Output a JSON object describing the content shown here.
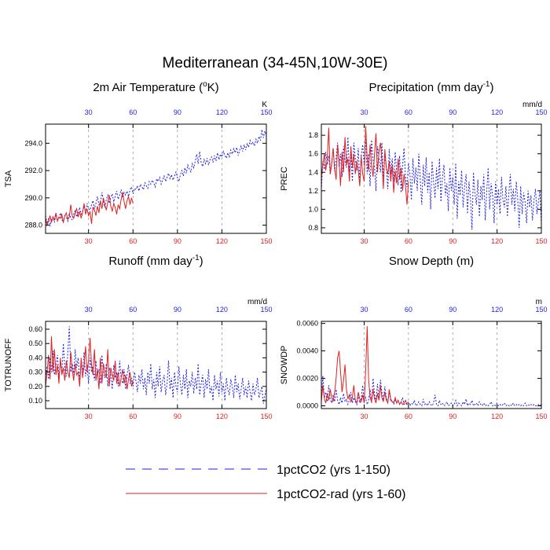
{
  "figure": {
    "title": "Mediterranean (34-45N,10W-30E)"
  },
  "legend": {
    "entries": [
      {
        "label": "1pctCO2 (yrs 1-150)",
        "color": "#1f1fe0",
        "dash": "dashed"
      },
      {
        "label": "1pctCO2-rad (yrs 1-60)",
        "color": "#e02020",
        "dash": "solid"
      }
    ]
  },
  "colors": {
    "blue": "#1f1fe0",
    "red": "#e02020",
    "grid": "#9a9a9a"
  },
  "chart_data": [
    {
      "type": "line",
      "title_main": "2m Air Temperature (",
      "title_sup": "o",
      "title_end": "K)",
      "ylabel": "TSA",
      "unit": "K",
      "xlim": [
        1,
        150
      ],
      "ylim": [
        287.4,
        295.4
      ],
      "y_ticks": [
        "288.0",
        "290.0",
        "292.0",
        "294.0"
      ],
      "y_tick_values": [
        288,
        290,
        292,
        294
      ],
      "x_ticks": [
        "30",
        "60",
        "90",
        "120",
        "150"
      ],
      "x_tick_values": [
        30,
        60,
        90,
        120,
        150
      ],
      "series": [
        {
          "name": "1pctCO2 (yrs 1-150)",
          "color": "blue",
          "x_start": 1,
          "values": [
            288.7,
            288.1,
            288.5,
            287.9,
            288.4,
            288.6,
            288.2,
            288.8,
            288.3,
            288.5,
            288.9,
            288.4,
            288.2,
            288.7,
            288.6,
            288.3,
            288.9,
            288.5,
            288.4,
            288.8,
            289.1,
            288.6,
            288.9,
            289.3,
            288.8,
            289.0,
            289.4,
            288.9,
            289.6,
            289.2,
            289.1,
            289.5,
            289.8,
            289.2,
            289.6,
            290.1,
            289.5,
            289.7,
            290.4,
            289.8,
            289.3,
            289.9,
            290.2,
            289.6,
            290.0,
            290.3,
            289.7,
            290.1,
            290.5,
            289.9,
            290.2,
            290.6,
            290.0,
            290.4,
            290.2,
            290.5,
            290.1,
            290.6,
            290.8,
            290.3,
            290.7,
            290.6,
            290.9,
            290.5,
            291.0,
            290.8,
            290.6,
            291.1,
            290.9,
            290.7,
            291.2,
            291.0,
            291.3,
            291.1,
            290.8,
            291.4,
            291.2,
            291.5,
            291.0,
            291.3,
            291.6,
            291.2,
            291.5,
            291.8,
            291.4,
            291.7,
            291.3,
            291.6,
            291.9,
            291.5,
            291.2,
            291.7,
            292.0,
            291.6,
            292.2,
            291.8,
            292.4,
            292.1,
            291.9,
            292.5,
            292.2,
            292.7,
            293.2,
            292.5,
            293.4,
            292.6,
            292.3,
            292.8,
            292.5,
            292.9,
            292.4,
            292.8,
            293.0,
            292.6,
            293.1,
            292.7,
            293.3,
            292.8,
            293.2,
            293.0,
            293.4,
            293.1,
            292.9,
            293.3,
            293.0,
            293.5,
            293.2,
            293.6,
            293.3,
            293.7,
            293.1,
            293.5,
            293.8,
            293.4,
            293.9,
            293.5,
            294.0,
            293.7,
            294.2,
            293.9,
            294.1,
            293.8,
            294.3,
            294.0,
            294.5,
            294.2,
            295.0,
            294.4,
            294.9,
            294.5
          ]
        },
        {
          "name": "1pctCO2-rad (yrs 1-60)",
          "color": "red",
          "x_start": 1,
          "values": [
            288.5,
            288.0,
            288.3,
            288.7,
            288.2,
            288.6,
            288.4,
            288.9,
            288.3,
            288.6,
            288.5,
            288.8,
            288.2,
            288.7,
            288.9,
            288.4,
            288.6,
            289.5,
            288.7,
            288.5,
            288.9,
            289.2,
            288.6,
            289.0,
            288.5,
            288.9,
            289.6,
            288.8,
            289.2,
            288.7,
            289.0,
            288.1,
            289.3,
            289.1,
            288.7,
            289.4,
            288.9,
            289.8,
            289.2,
            290.0,
            289.5,
            289.1,
            289.7,
            290.2,
            289.4,
            289.0,
            289.6,
            289.3,
            288.8,
            289.5,
            289.2,
            289.9,
            290.4,
            289.7,
            289.2,
            289.8,
            290.1,
            289.5,
            290.0,
            289.6
          ]
        }
      ]
    },
    {
      "type": "line",
      "title_main": "Precipitation (mm day",
      "title_sup": "-1",
      "title_end": ")",
      "ylabel": "PREC",
      "unit": "mm/d",
      "xlim": [
        1,
        150
      ],
      "ylim": [
        0.74,
        1.92
      ],
      "y_ticks": [
        "0.8",
        "1.0",
        "1.2",
        "1.4",
        "1.6",
        "1.8"
      ],
      "y_tick_values": [
        0.8,
        1.0,
        1.2,
        1.4,
        1.6,
        1.8
      ],
      "x_ticks": [
        "30",
        "60",
        "90",
        "120",
        "150"
      ],
      "x_tick_values": [
        30,
        60,
        90,
        120,
        150
      ],
      "series": [
        {
          "name": "1pctCO2 (yrs 1-150)",
          "color": "blue",
          "x_start": 1,
          "values": [
            1.21,
            1.52,
            1.43,
            1.62,
            1.48,
            1.58,
            1.38,
            1.5,
            1.66,
            1.41,
            1.55,
            1.72,
            1.46,
            1.6,
            1.35,
            1.68,
            1.52,
            1.45,
            1.78,
            1.4,
            1.6,
            1.3,
            1.72,
            1.55,
            1.42,
            1.66,
            1.28,
            1.58,
            1.7,
            1.48,
            1.82,
            1.38,
            1.6,
            1.25,
            1.75,
            1.52,
            1.46,
            1.2,
            1.68,
            1.56,
            1.4,
            1.72,
            1.33,
            1.58,
            1.46,
            1.22,
            1.65,
            1.38,
            1.55,
            1.3,
            1.62,
            1.42,
            1.26,
            1.58,
            1.18,
            1.48,
            1.66,
            1.35,
            1.24,
            1.5,
            1.38,
            1.1,
            1.55,
            1.28,
            1.45,
            1.2,
            1.6,
            1.32,
            1.05,
            1.48,
            1.25,
            1.56,
            1.18,
            1.4,
            1.0,
            1.52,
            1.3,
            1.12,
            1.45,
            1.22,
            1.55,
            1.08,
            1.35,
            1.48,
            1.15,
            1.28,
            0.98,
            1.45,
            1.2,
            1.35,
            1.05,
            1.5,
            0.9,
            1.3,
            1.15,
            1.42,
            1.02,
            1.25,
            1.38,
            0.95,
            1.3,
            1.12,
            0.78,
            1.4,
            1.18,
            1.05,
            1.32,
            0.92,
            1.25,
            1.1,
            1.38,
            0.88,
            1.2,
            1.45,
            1.0,
            1.28,
            1.15,
            0.85,
            1.3,
            1.05,
            1.22,
            0.95,
            1.35,
            1.1,
            1.02,
            1.25,
            0.92,
            1.18,
            1.38,
            1.05,
            1.22,
            0.98,
            1.3,
            1.12,
            0.8,
            1.25,
            0.95,
            1.18,
            1.08,
            0.85,
            1.2,
            1.02,
            1.15,
            0.88,
            1.1,
            1.22,
            0.95,
            1.08,
            1.2,
            0.84
          ]
        },
        {
          "name": "1pctCO2-rad (yrs 1-60)",
          "color": "red",
          "x_start": 1,
          "values": [
            1.35,
            1.48,
            1.6,
            1.42,
            1.55,
            1.88,
            1.38,
            1.5,
            1.66,
            1.45,
            1.32,
            1.7,
            1.52,
            1.25,
            1.62,
            1.4,
            1.78,
            1.48,
            1.55,
            1.3,
            1.68,
            1.45,
            1.6,
            1.38,
            1.52,
            1.42,
            1.25,
            1.58,
            1.38,
            1.3,
            1.9,
            1.55,
            1.42,
            1.7,
            1.48,
            1.35,
            1.6,
            1.82,
            1.4,
            1.62,
            1.72,
            1.55,
            1.22,
            1.65,
            1.45,
            1.38,
            1.52,
            1.3,
            1.48,
            1.18,
            1.42,
            1.28,
            1.55,
            1.32,
            1.45,
            1.2,
            1.38,
            1.25,
            1.05,
            1.3
          ]
        }
      ]
    },
    {
      "type": "line",
      "title_main": "Runoff (mm day",
      "title_sup": "-1",
      "title_end": ")",
      "ylabel": "TOTRUNOFF",
      "unit": "mm/d",
      "xlim": [
        1,
        150
      ],
      "ylim": [
        0.045,
        0.655
      ],
      "y_ticks": [
        "0.10",
        "0.20",
        "0.30",
        "0.40",
        "0.50",
        "0.60"
      ],
      "y_tick_values": [
        0.1,
        0.2,
        0.3,
        0.4,
        0.5,
        0.6
      ],
      "x_ticks": [
        "30",
        "60",
        "90",
        "120",
        "150"
      ],
      "x_tick_values": [
        30,
        60,
        90,
        120,
        150
      ],
      "series": [
        {
          "name": "1pctCO2 (yrs 1-150)",
          "color": "blue",
          "x_start": 1,
          "values": [
            0.26,
            0.34,
            0.25,
            0.4,
            0.3,
            0.45,
            0.28,
            0.35,
            0.42,
            0.26,
            0.38,
            0.3,
            0.5,
            0.32,
            0.27,
            0.44,
            0.62,
            0.3,
            0.36,
            0.28,
            0.46,
            0.33,
            0.4,
            0.25,
            0.36,
            0.3,
            0.44,
            0.27,
            0.35,
            0.22,
            0.4,
            0.3,
            0.34,
            0.24,
            0.38,
            0.28,
            0.32,
            0.22,
            0.42,
            0.3,
            0.26,
            0.36,
            0.2,
            0.33,
            0.28,
            0.18,
            0.35,
            0.26,
            0.3,
            0.2,
            0.38,
            0.25,
            0.22,
            0.32,
            0.18,
            0.28,
            0.35,
            0.22,
            0.26,
            0.2,
            0.3,
            0.24,
            0.16,
            0.28,
            0.22,
            0.32,
            0.18,
            0.26,
            0.14,
            0.3,
            0.22,
            0.36,
            0.18,
            0.25,
            0.12,
            0.3,
            0.2,
            0.34,
            0.16,
            0.24,
            0.28,
            0.14,
            0.22,
            0.38,
            0.18,
            0.26,
            0.12,
            0.3,
            0.2,
            0.16,
            0.34,
            0.22,
            0.14,
            0.28,
            0.18,
            0.32,
            0.12,
            0.24,
            0.2,
            0.3,
            0.15,
            0.26,
            0.18,
            0.36,
            0.14,
            0.22,
            0.28,
            0.12,
            0.25,
            0.18,
            0.32,
            0.15,
            0.2,
            0.1,
            0.28,
            0.18,
            0.24,
            0.13,
            0.3,
            0.16,
            0.22,
            0.1,
            0.26,
            0.18,
            0.14,
            0.25,
            0.2,
            0.12,
            0.28,
            0.16,
            0.22,
            0.11,
            0.18,
            0.26,
            0.14,
            0.2,
            0.12,
            0.24,
            0.16,
            0.1,
            0.22,
            0.14,
            0.18,
            0.26,
            0.12,
            0.16,
            0.2,
            0.08,
            0.14,
            0.18
          ]
        },
        {
          "name": "1pctCO2-rad (yrs 1-60)",
          "color": "red",
          "x_start": 1,
          "values": [
            0.2,
            0.3,
            0.42,
            0.25,
            0.55,
            0.3,
            0.46,
            0.28,
            0.35,
            0.22,
            0.4,
            0.28,
            0.33,
            0.24,
            0.38,
            0.3,
            0.26,
            0.44,
            0.32,
            0.24,
            0.36,
            0.28,
            0.3,
            0.2,
            0.4,
            0.26,
            0.34,
            0.48,
            0.3,
            0.38,
            0.54,
            0.35,
            0.28,
            0.46,
            0.24,
            0.32,
            0.18,
            0.4,
            0.22,
            0.36,
            0.3,
            0.26,
            0.46,
            0.2,
            0.33,
            0.28,
            0.24,
            0.38,
            0.22,
            0.3,
            0.2,
            0.26,
            0.32,
            0.22,
            0.28,
            0.18,
            0.25,
            0.3,
            0.2,
            0.24
          ]
        }
      ]
    },
    {
      "type": "line",
      "title_main": "Snow Depth (m)",
      "title_sup": "",
      "title_end": "",
      "ylabel": "SNOWDP",
      "unit": "m",
      "xlim": [
        1,
        150
      ],
      "ylim": [
        -0.0002,
        0.00615
      ],
      "y_ticks": [
        "0.0000",
        "0.0020",
        "0.0040",
        "0.0060"
      ],
      "y_tick_values": [
        0.0,
        0.002,
        0.004,
        0.006
      ],
      "x_ticks": [
        "30",
        "60",
        "90",
        "120",
        "150"
      ],
      "x_tick_values": [
        30,
        60,
        90,
        120,
        150
      ],
      "series": [
        {
          "name": "1pctCO2 (yrs 1-150)",
          "color": "blue",
          "x_start": 1,
          "values": [
            0.0004,
            0.0022,
            0.0006,
            0.001,
            0.0003,
            0.0015,
            0.0005,
            0.0002,
            0.0008,
            0.0003,
            0.0012,
            0.0004,
            0.0001,
            0.0006,
            0.0002,
            0.0009,
            0.0003,
            0.0005,
            0.0001,
            0.0004,
            0.001,
            0.0002,
            0.0006,
            0.0003,
            0.0001,
            0.0008,
            0.0002,
            0.0005,
            0.0015,
            0.0003,
            0.0006,
            0.0001,
            0.0004,
            0.0012,
            0.0002,
            0.002,
            0.0008,
            0.0003,
            0.0016,
            0.0005,
            0.0019,
            0.001,
            0.0004,
            0.0014,
            0.0006,
            0.0002,
            0.0011,
            0.0003,
            0.0004,
            0.0001,
            0.0005,
            0.0002,
            0.0004,
            0.0001,
            0.0003,
            0.0006,
            0.0001,
            0.0002,
            0.0001,
            0.0003,
            0.0,
            0.0002,
            0.0001,
            0.0004,
            0.0,
            0.0001,
            0.0003,
            0.0001,
            0.0,
            0.0005,
            0.0001,
            0.0002,
            0.0,
            0.0003,
            0.0001,
            0.0,
            0.0002,
            0.0008,
            0.0001,
            0.0,
            0.0004,
            0.0001,
            0.0002,
            0.0,
            0.0001,
            0.0003,
            0.0,
            0.0001,
            0.0002,
            0.0,
            0.0001,
            0.0004,
            0.0,
            0.0002,
            0.0001,
            0.0,
            0.0003,
            0.0001,
            0.0005,
            0.0,
            0.0002,
            0.0001,
            0.0004,
            0.0,
            0.0001,
            0.0002,
            0.0,
            0.0003,
            0.0001,
            0.0,
            0.0002,
            0.0,
            0.0001,
            0.0,
            0.0001,
            0.0003,
            0.0,
            0.0001,
            0.0,
            0.0002,
            0.0,
            0.0001,
            0.0,
            0.0001,
            0.0002,
            0.0,
            0.0001,
            0.0,
            0.0001,
            0.0,
            0.0002,
            0.0,
            0.0001,
            0.0,
            0.0001,
            0.0,
            0.0001,
            0.0,
            0.0002,
            0.0,
            0.0001,
            0.0,
            0.0001,
            0.0,
            0.0001,
            0.0,
            0.0,
            0.0001,
            0.0,
            0.0001
          ]
        },
        {
          "name": "1pctCO2-rad (yrs 1-60)",
          "color": "red",
          "x_start": 1,
          "values": [
            0.0003,
            0.0015,
            0.0005,
            0.0002,
            0.0009,
            0.0004,
            0.0012,
            0.0006,
            0.0003,
            0.001,
            0.002,
            0.0035,
            0.004,
            0.0025,
            0.001,
            0.0018,
            0.003,
            0.0012,
            0.0005,
            0.0008,
            0.0003,
            0.0006,
            0.0015,
            0.0004,
            0.0002,
            0.001,
            0.0005,
            0.0003,
            0.0008,
            0.0002,
            0.0025,
            0.0058,
            0.002,
            0.0006,
            0.0003,
            0.0012,
            0.0005,
            0.0002,
            0.0009,
            0.0004,
            0.0015,
            0.0006,
            0.0003,
            0.001,
            0.0004,
            0.0002,
            0.0012,
            0.0005,
            0.0003,
            0.0002,
            0.0006,
            0.0002,
            0.0004,
            0.0001,
            0.0003,
            0.0001,
            0.0002,
            0.0004,
            0.0001,
            0.0002
          ]
        }
      ]
    }
  ]
}
